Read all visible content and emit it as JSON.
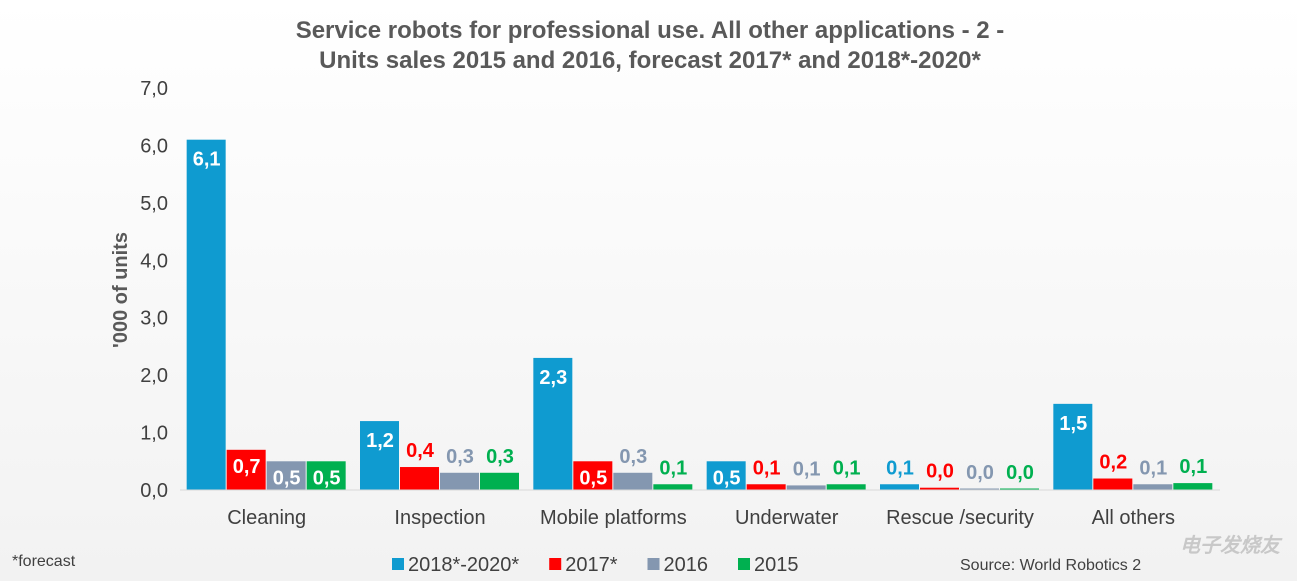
{
  "chart_data": {
    "type": "bar",
    "title_lines": [
      "Service robots for professional use. All other applications - 2 -",
      "Units sales 2015 and 2016, forecast 2017* and 2018*-2020*"
    ],
    "ylabel": "'000 of units",
    "ylim": [
      0,
      7
    ],
    "yticks": [
      "0,0",
      "1,0",
      "2,0",
      "3,0",
      "4,0",
      "5,0",
      "6,0",
      "7,0"
    ],
    "categories": [
      "Cleaning",
      "Inspection",
      "Mobile platforms",
      "Underwater",
      "Rescue /security",
      "All others"
    ],
    "series": [
      {
        "name": "2018*-2020*",
        "color": "#0f9bd0",
        "values": [
          6.1,
          1.2,
          2.3,
          0.5,
          0.1,
          1.5
        ],
        "labels": [
          "6,1",
          "1,2",
          "2,3",
          "0,5",
          "0,1",
          "1,5"
        ]
      },
      {
        "name": "2017*",
        "color": "#ff0000",
        "values": [
          0.7,
          0.4,
          0.5,
          0.1,
          0.04,
          0.2
        ],
        "labels": [
          "0,7",
          "0,4",
          "0,5",
          "0,1",
          "0,0",
          "0,2"
        ]
      },
      {
        "name": "2016",
        "color": "#8497b0",
        "values": [
          0.5,
          0.3,
          0.3,
          0.08,
          0.02,
          0.1
        ],
        "labels": [
          "0,5",
          "0,3",
          "0,3",
          "0,1",
          "0,0",
          "0,1"
        ]
      },
      {
        "name": "2015",
        "color": "#00b050",
        "values": [
          0.5,
          0.3,
          0.1,
          0.1,
          0.02,
          0.12
        ],
        "labels": [
          "0,5",
          "0,3",
          "0,1",
          "0,1",
          "0,0",
          "0,1"
        ]
      }
    ],
    "legend_position": "bottom",
    "grid": false
  },
  "footnote": "*forecast",
  "source": "Source: World Robotics 2",
  "watermark": "电子发烧友"
}
